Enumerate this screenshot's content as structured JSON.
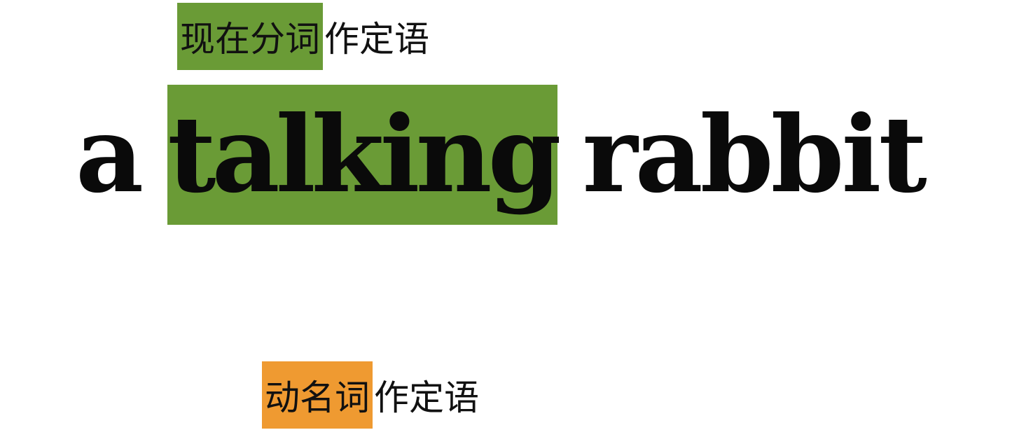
{
  "top_label": {
    "highlight": "现在分词",
    "rest": "作定语"
  },
  "phrase": {
    "article": "a",
    "participle": "talking",
    "noun": "rabbit"
  },
  "bottom_label": {
    "highlight": "动名词",
    "rest": "作定语"
  },
  "colors": {
    "green_highlight": "#6a9b36",
    "orange_highlight": "#ef9a31",
    "text": "#0a0a0a",
    "background": "#ffffff"
  }
}
